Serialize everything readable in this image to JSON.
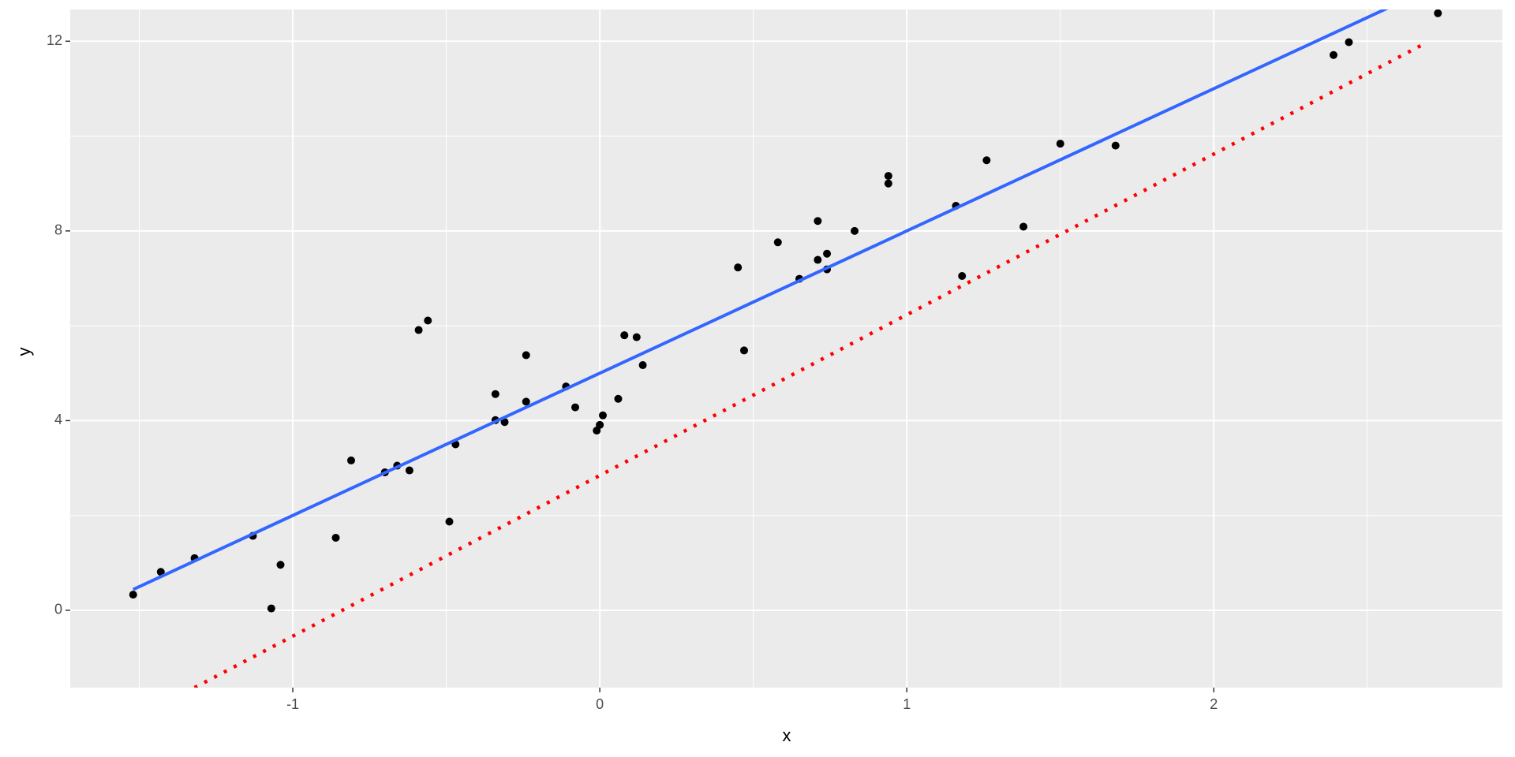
{
  "chart_data": {
    "type": "scatter",
    "xlabel": "x",
    "ylabel": "y",
    "xlim": [
      -1.725,
      2.94
    ],
    "ylim": [
      -1.63,
      12.67
    ],
    "xticks": [
      -1,
      0,
      1,
      2
    ],
    "yticks": [
      0,
      4,
      8,
      12
    ],
    "xminor": [
      -1.5,
      -0.5,
      0.5,
      1.5,
      2.5
    ],
    "yminor": [
      2,
      6,
      10
    ],
    "grid": true,
    "panel_color": "#ebebeb",
    "point_color": "#000000",
    "x": [
      -1.52,
      -1.43,
      -1.32,
      -1.13,
      -1.04,
      -1.07,
      -0.86,
      -0.81,
      -0.7,
      -0.66,
      -0.62,
      -0.59,
      -0.56,
      -0.49,
      -0.47,
      -0.34,
      -0.34,
      -0.31,
      -0.24,
      -0.24,
      -0.11,
      -0.08,
      -0.01,
      0.0,
      0.01,
      0.06,
      0.08,
      0.12,
      0.14,
      0.45,
      0.47,
      0.58,
      0.65,
      0.71,
      0.71,
      0.74,
      0.74,
      0.83,
      0.94,
      0.94,
      1.16,
      1.18,
      1.26,
      1.38,
      1.5,
      1.68,
      2.39,
      2.44,
      2.73
    ],
    "y": [
      0.33,
      0.81,
      1.1,
      1.57,
      0.96,
      0.04,
      1.53,
      3.16,
      2.91,
      3.05,
      2.95,
      5.91,
      6.11,
      1.87,
      3.5,
      4.56,
      4.01,
      3.97,
      5.38,
      4.4,
      4.72,
      4.28,
      3.79,
      3.91,
      4.11,
      4.46,
      5.8,
      5.76,
      5.17,
      7.23,
      5.48,
      7.76,
      6.99,
      8.21,
      7.39,
      7.52,
      7.19,
      8.0,
      9.16,
      9.0,
      8.53,
      7.05,
      9.49,
      8.09,
      9.84,
      9.8,
      11.71,
      11.98,
      12.59
    ],
    "lines": [
      {
        "x": [
          -1.52,
          2.57
        ],
        "y": [
          0.44,
          12.71
        ],
        "color": "#3366ff",
        "style": "solid"
      },
      {
        "x": [
          -1.32,
          2.69
        ],
        "y": [
          -1.63,
          11.96
        ],
        "color": "#ff0000",
        "style": "dotted"
      }
    ]
  }
}
